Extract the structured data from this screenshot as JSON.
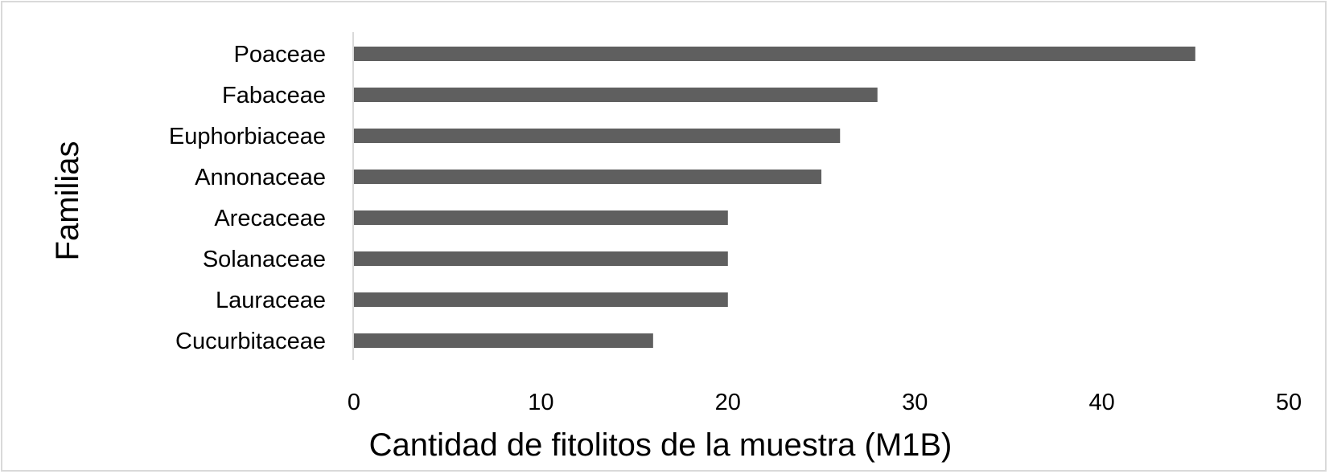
{
  "chart_data": {
    "type": "bar",
    "orientation": "horizontal",
    "categories": [
      "Poaceae",
      "Fabaceae",
      "Euphorbiaceae",
      "Annonaceae",
      "Arecaceae",
      "Solanaceae",
      "Lauraceae",
      "Cucurbitaceae"
    ],
    "values": [
      45,
      28,
      26,
      25,
      20,
      20,
      20,
      16
    ],
    "xlabel": "Cantidad de fitolitos de la muestra (M1B)",
    "ylabel": "Familias",
    "xlim": [
      0,
      50
    ],
    "xticks": [
      "0",
      "10",
      "20",
      "30",
      "40",
      "50"
    ],
    "grid": false,
    "legend": "none",
    "bar_color": "#5f5f5f",
    "axis_color": "#d9d9d9"
  }
}
